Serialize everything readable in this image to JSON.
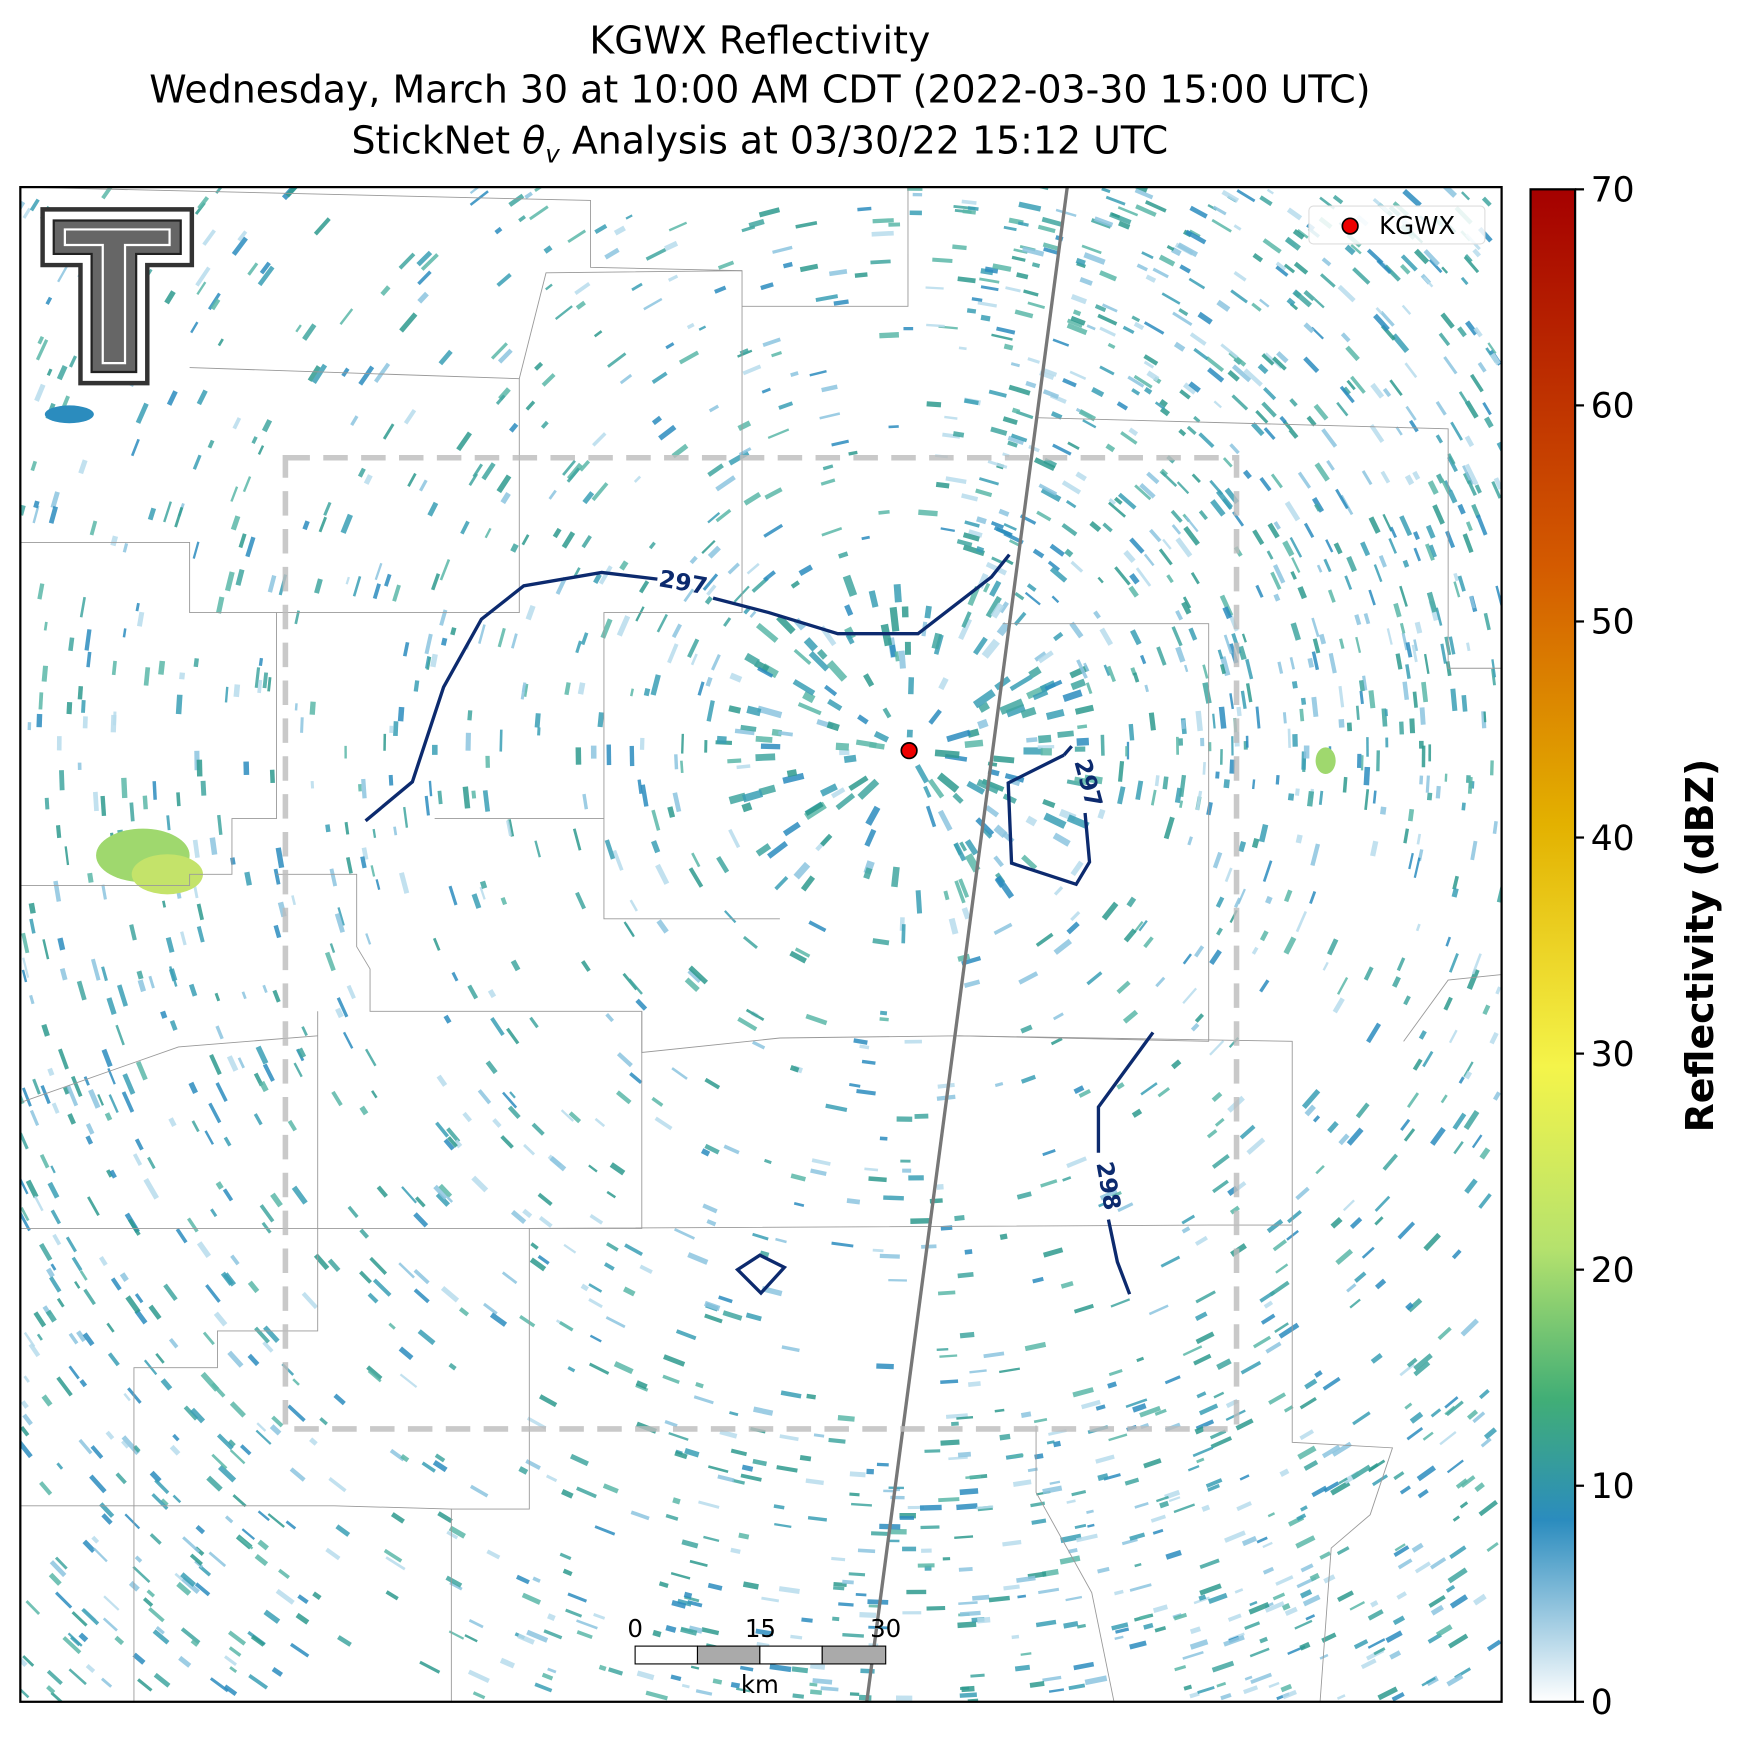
{
  "title": {
    "line1": "KGWX Reflectivity",
    "line2": "Wednesday, March 30 at 10:00 AM CDT (2022-03-30 15:00 UTC)",
    "line3": {
      "prefix": "StickNet ",
      "symbol": "θ",
      "subscript": "v",
      "suffix": " Analysis at 03/30/22 15:12 UTC"
    }
  },
  "legend": {
    "label": "KGWX"
  },
  "contour_labels": [
    "297",
    "297",
    "298"
  ],
  "scale_bar": {
    "ticks": [
      0,
      15,
      30
    ],
    "unit": "km"
  },
  "colorbar": {
    "label": "Reflectivity (dBZ)",
    "lim": [
      0,
      70
    ],
    "ticks": [
      0,
      10,
      20,
      30,
      40,
      50,
      60,
      70
    ]
  }
}
